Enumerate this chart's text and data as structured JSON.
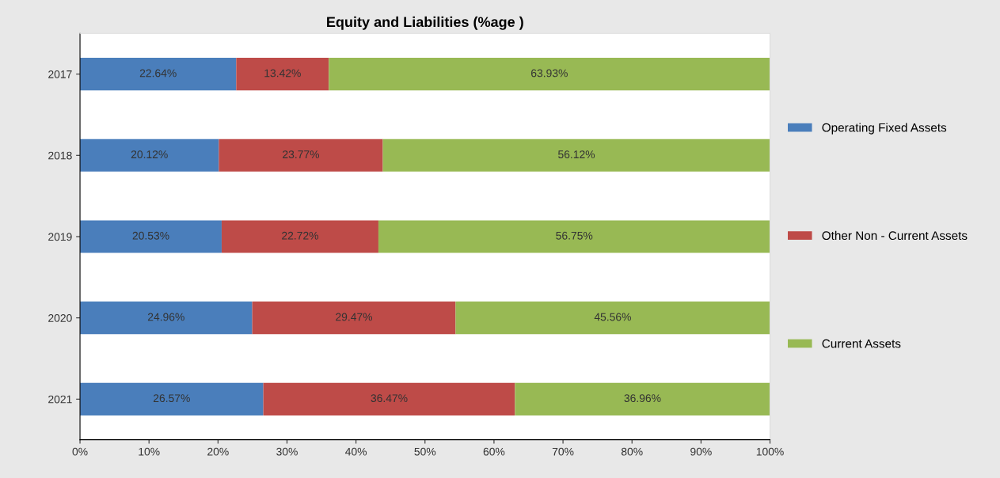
{
  "chart_data": {
    "type": "bar",
    "orientation": "horizontal",
    "stacked": true,
    "title": "Equity and Liabilities (%age )",
    "categories": [
      "2017",
      "2018",
      "2019",
      "2020",
      "2021"
    ],
    "series": [
      {
        "name": "Operating Fixed Assets",
        "color": "#4a7ebb",
        "values": [
          22.64,
          20.12,
          20.53,
          24.96,
          26.57
        ],
        "value_labels": [
          "22.64%",
          "20.12%",
          "20.53%",
          "24.96%",
          "26.57%"
        ]
      },
      {
        "name": "Other Non - Current Assets",
        "color": "#be4b48",
        "values": [
          13.42,
          23.77,
          22.72,
          29.47,
          36.47
        ],
        "value_labels": [
          "13.42%",
          "23.77%",
          "22.72%",
          "29.47%",
          "36.47%"
        ]
      },
      {
        "name": "Current Assets",
        "color": "#98b954",
        "values": [
          63.93,
          56.12,
          56.75,
          45.56,
          36.96
        ],
        "value_labels": [
          "63.93%",
          "56.12%",
          "56.75%",
          "45.56%",
          "36.96%"
        ]
      }
    ],
    "xlim": [
      0,
      100
    ],
    "xticks": [
      {
        "value": 0,
        "label": "0%"
      },
      {
        "value": 10,
        "label": "10%"
      },
      {
        "value": 20,
        "label": "20%"
      },
      {
        "value": 30,
        "label": "30%"
      },
      {
        "value": 40,
        "label": "40%"
      },
      {
        "value": 50,
        "label": "50%"
      },
      {
        "value": 60,
        "label": "60%"
      },
      {
        "value": 70,
        "label": "70%"
      },
      {
        "value": 80,
        "label": "80%"
      },
      {
        "value": 90,
        "label": "90%"
      },
      {
        "value": 100,
        "label": "100%"
      }
    ],
    "grid": false,
    "legend": "right"
  }
}
